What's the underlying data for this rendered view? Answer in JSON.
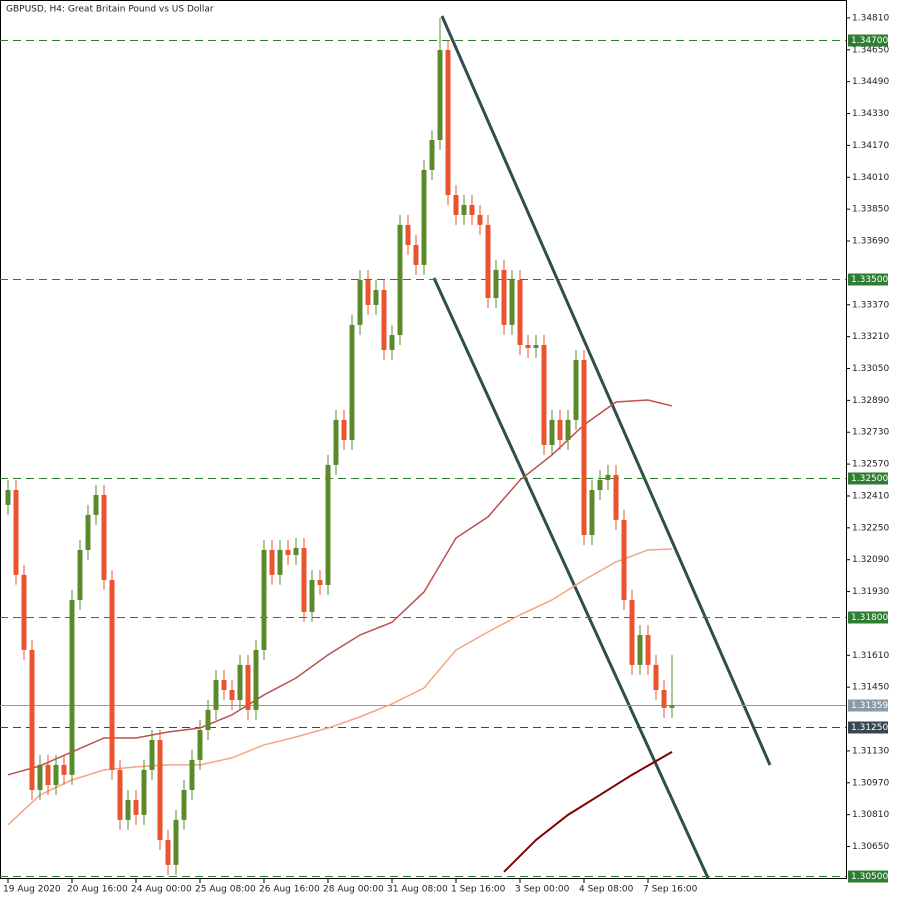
{
  "chart_data": {
    "type": "candlestick",
    "title": "GBPUSD, H4:  Great Britain Pound vs US Dollar",
    "categories": [
      "19 Aug 2020",
      null,
      null,
      null,
      null,
      null,
      null,
      null,
      "20 Aug 16:00",
      null,
      null,
      null,
      null,
      null,
      null,
      null,
      "24 Aug 00:00",
      null,
      null,
      null,
      null,
      null,
      null,
      null,
      "25 Aug 08:00",
      null,
      null,
      null,
      null,
      null,
      null,
      null,
      "26 Aug 16:00",
      null,
      null,
      null,
      null,
      null,
      null,
      null,
      "28 Aug 00:00",
      null,
      null,
      null,
      null,
      null,
      null,
      null,
      "31 Aug 08:00",
      null,
      null,
      null,
      null,
      null,
      null,
      null,
      "1 Sep 16:00",
      null,
      null,
      null,
      null,
      null,
      null,
      null,
      "3 Sep 00:00",
      null,
      null,
      null,
      null,
      null,
      null,
      null,
      "4 Sep 08:00",
      null,
      null,
      null,
      null,
      null,
      null,
      null,
      "7 Sep 16:00",
      null,
      null,
      null
    ],
    "open": [
      1.32365,
      1.3244,
      1.32014,
      1.31637,
      1.30934,
      1.3106,
      1.30959,
      1.3106,
      1.3101,
      1.31888,
      1.32139,
      1.32315,
      1.32415,
      1.31988,
      1.31035,
      1.30784,
      1.30884,
      1.30809,
      1.31035,
      1.31185,
      1.30683,
      1.30558,
      1.30784,
      1.30934,
      1.31085,
      1.31235,
      1.31336,
      1.31486,
      1.31436,
      1.31386,
      1.31562,
      1.31336,
      1.31637,
      1.32139,
      1.32014,
      1.32139,
      1.32114,
      1.32149,
      1.31828,
      1.31988,
      1.31963,
      1.32566,
      1.32792,
      1.32691,
      1.33269,
      1.33494,
      1.33369,
      1.33444,
      1.33143,
      1.33218,
      1.33771,
      1.3367,
      1.3357,
      1.34047,
      1.34197,
      1.34649,
      1.33921,
      1.33821,
      1.33871,
      1.33821,
      1.33771,
      1.33404,
      1.33545,
      1.33269,
      1.33494,
      1.33168,
      1.33153,
      1.33168,
      1.32666,
      1.32792,
      1.32691,
      1.32792,
      1.33093,
      1.32214,
      1.3244,
      1.3249,
      1.32516,
      1.3229,
      1.31888,
      1.31562,
      1.31712,
      1.31562,
      1.31436,
      1.31346
    ],
    "high": [
      1.3249,
      1.3249,
      1.32064,
      1.31687,
      1.3111,
      1.3111,
      1.3111,
      1.3111,
      1.31938,
      1.32189,
      1.32365,
      1.32465,
      1.32465,
      1.32038,
      1.31085,
      1.30934,
      1.30934,
      1.31085,
      1.31235,
      1.31235,
      1.30733,
      1.30834,
      1.30984,
      1.31135,
      1.31285,
      1.31386,
      1.31536,
      1.31536,
      1.31486,
      1.31612,
      1.31612,
      1.31687,
      1.32189,
      1.32189,
      1.32189,
      1.32189,
      1.32199,
      1.32199,
      1.32038,
      1.32038,
      1.32616,
      1.32842,
      1.32842,
      1.33319,
      1.33544,
      1.33544,
      1.33494,
      1.33494,
      1.33268,
      1.33821,
      1.33821,
      1.3372,
      1.34097,
      1.34247,
      1.3481,
      1.34699,
      1.33971,
      1.33921,
      1.33921,
      1.33871,
      1.33821,
      1.33595,
      1.33595,
      1.33544,
      1.33544,
      1.33218,
      1.33218,
      1.33218,
      1.32842,
      1.32842,
      1.32842,
      1.33143,
      1.33143,
      1.3249,
      1.3254,
      1.32566,
      1.32566,
      1.3234,
      1.31938,
      1.31762,
      1.31762,
      1.31612,
      1.31486,
      1.31612
    ],
    "low": [
      1.32315,
      1.31964,
      1.31587,
      1.30884,
      1.30884,
      1.30909,
      1.30909,
      1.3096,
      1.3096,
      1.31838,
      1.32089,
      1.32265,
      1.31938,
      1.30985,
      1.30734,
      1.30734,
      1.30759,
      1.30759,
      1.30985,
      1.30633,
      1.30508,
      1.30508,
      1.30734,
      1.30884,
      1.31035,
      1.31185,
      1.31286,
      1.31386,
      1.31336,
      1.31336,
      1.31286,
      1.31286,
      1.31587,
      1.31964,
      1.31964,
      1.32064,
      1.32064,
      1.31778,
      1.31778,
      1.31913,
      1.31913,
      1.32516,
      1.32641,
      1.32641,
      1.33219,
      1.33319,
      1.33319,
      1.33093,
      1.33093,
      1.33168,
      1.3362,
      1.3352,
      1.3352,
      1.33997,
      1.34147,
      1.33871,
      1.33771,
      1.33771,
      1.33771,
      1.33721,
      1.33354,
      1.33354,
      1.33219,
      1.33219,
      1.33118,
      1.33103,
      1.33103,
      1.32616,
      1.32616,
      1.32641,
      1.32641,
      1.32742,
      1.32164,
      1.32164,
      1.3239,
      1.3244,
      1.3224,
      1.31838,
      1.31512,
      1.31512,
      1.31512,
      1.31386,
      1.31296,
      1.31296
    ],
    "close": [
      1.3244,
      1.32014,
      1.31637,
      1.30934,
      1.3106,
      1.30959,
      1.3106,
      1.3101,
      1.31888,
      1.32139,
      1.32315,
      1.32415,
      1.31988,
      1.31035,
      1.30784,
      1.30884,
      1.30809,
      1.31035,
      1.31185,
      1.30683,
      1.30558,
      1.30784,
      1.30934,
      1.31085,
      1.31235,
      1.31336,
      1.31486,
      1.31436,
      1.31386,
      1.31562,
      1.31336,
      1.31637,
      1.32139,
      1.32014,
      1.32139,
      1.32114,
      1.32149,
      1.31828,
      1.31988,
      1.31963,
      1.32566,
      1.32792,
      1.32691,
      1.33269,
      1.33494,
      1.33369,
      1.33444,
      1.33143,
      1.33218,
      1.33771,
      1.3367,
      1.3357,
      1.34047,
      1.34197,
      1.34649,
      1.33921,
      1.33821,
      1.33871,
      1.33821,
      1.33771,
      1.33404,
      1.33545,
      1.33269,
      1.33494,
      1.33168,
      1.33153,
      1.33168,
      1.32666,
      1.32792,
      1.32691,
      1.32792,
      1.33093,
      1.32214,
      1.3244,
      1.3249,
      1.32516,
      1.3229,
      1.31888,
      1.31562,
      1.31712,
      1.31562,
      1.31436,
      1.31346,
      1.31359
    ],
    "up_color": "#5a8a2c",
    "down_color": "#e9542f",
    "indicators": [
      {
        "color": "#c0504d",
        "x": [
          0,
          4,
          8,
          12,
          16,
          20,
          24,
          28,
          32,
          36,
          40,
          44,
          48,
          52,
          56,
          60,
          64,
          68,
          72,
          76,
          80,
          83
        ],
        "values": [
          1.3101,
          1.31055,
          1.31125,
          1.31195,
          1.31195,
          1.31225,
          1.31245,
          1.31311,
          1.31411,
          1.31496,
          1.31612,
          1.31712,
          1.31776,
          1.31928,
          1.32199,
          1.32305,
          1.3249,
          1.32616,
          1.32767,
          1.32882,
          1.32892,
          1.32862
        ]
      },
      {
        "color": "#f4a582",
        "x": [
          0,
          4,
          8,
          12,
          16,
          20,
          24,
          28,
          32,
          36,
          40,
          44,
          48,
          52,
          56,
          60,
          64,
          68,
          72,
          76,
          80,
          83
        ],
        "values": [
          1.30759,
          1.30909,
          1.30984,
          1.31035,
          1.3105,
          1.3106,
          1.3106,
          1.31095,
          1.3116,
          1.312,
          1.31245,
          1.31301,
          1.31366,
          1.31446,
          1.31637,
          1.31727,
          1.31813,
          1.31888,
          1.31988,
          1.32079,
          1.32139,
          1.32144
        ]
      },
      {
        "color": "#800000",
        "x": [
          62,
          66,
          70,
          74,
          78,
          83
        ],
        "values": [
          1.30523,
          1.30683,
          1.30809,
          1.30909,
          1.3101,
          1.31125
        ]
      }
    ],
    "levels": [
      {
        "value": 1.347,
        "label": "1.34700"
      },
      {
        "value": 1.335,
        "label": "1.33500"
      },
      {
        "value": 1.325,
        "label": "1.32500"
      },
      {
        "value": 1.318,
        "label": "1.31800"
      },
      {
        "value": 1.3125,
        "label": "1.31250"
      },
      {
        "value": 1.305,
        "label": "1.30500"
      }
    ],
    "level_colors": [
      "#2e7d32",
      "#2e7d32",
      "#2e7d32",
      "#2e7d32",
      "#37474f",
      "#2e7d32"
    ],
    "current_price": {
      "value": 1.31359,
      "label": "1.31359"
    },
    "current_price_color": "#8a9aa6",
    "ylim": [
      1.30482,
      1.349
    ],
    "yticks": [
      {
        "value": 1.3481,
        "label": "1.34810"
      },
      {
        "value": 1.3465,
        "label": "1.34650"
      },
      {
        "value": 1.3449,
        "label": "1.34490"
      },
      {
        "value": 1.3433,
        "label": "1.34330"
      },
      {
        "value": 1.3417,
        "label": "1.34170"
      },
      {
        "value": 1.3401,
        "label": "1.34010"
      },
      {
        "value": 1.3385,
        "label": "1.33850"
      },
      {
        "value": 1.3369,
        "label": "1.33690"
      },
      {
        "value": 1.3337,
        "label": "1.33370"
      },
      {
        "value": 1.3321,
        "label": "1.33210"
      },
      {
        "value": 1.3305,
        "label": "1.33050"
      },
      {
        "value": 1.3289,
        "label": "1.32890"
      },
      {
        "value": 1.3273,
        "label": "1.32730"
      },
      {
        "value": 1.3257,
        "label": "1.32570"
      },
      {
        "value": 1.3241,
        "label": "1.32410"
      },
      {
        "value": 1.3225,
        "label": "1.32250"
      },
      {
        "value": 1.3209,
        "label": "1.32090"
      },
      {
        "value": 1.3193,
        "label": "1.31930"
      },
      {
        "value": 1.3161,
        "label": "1.31610"
      },
      {
        "value": 1.3145,
        "label": "1.31450"
      },
      {
        "value": 1.3113,
        "label": "1.31130"
      },
      {
        "value": 1.3097,
        "label": "1.30970"
      },
      {
        "value": 1.3081,
        "label": "1.30810"
      },
      {
        "value": 1.3065,
        "label": "1.30650"
      }
    ]
  }
}
